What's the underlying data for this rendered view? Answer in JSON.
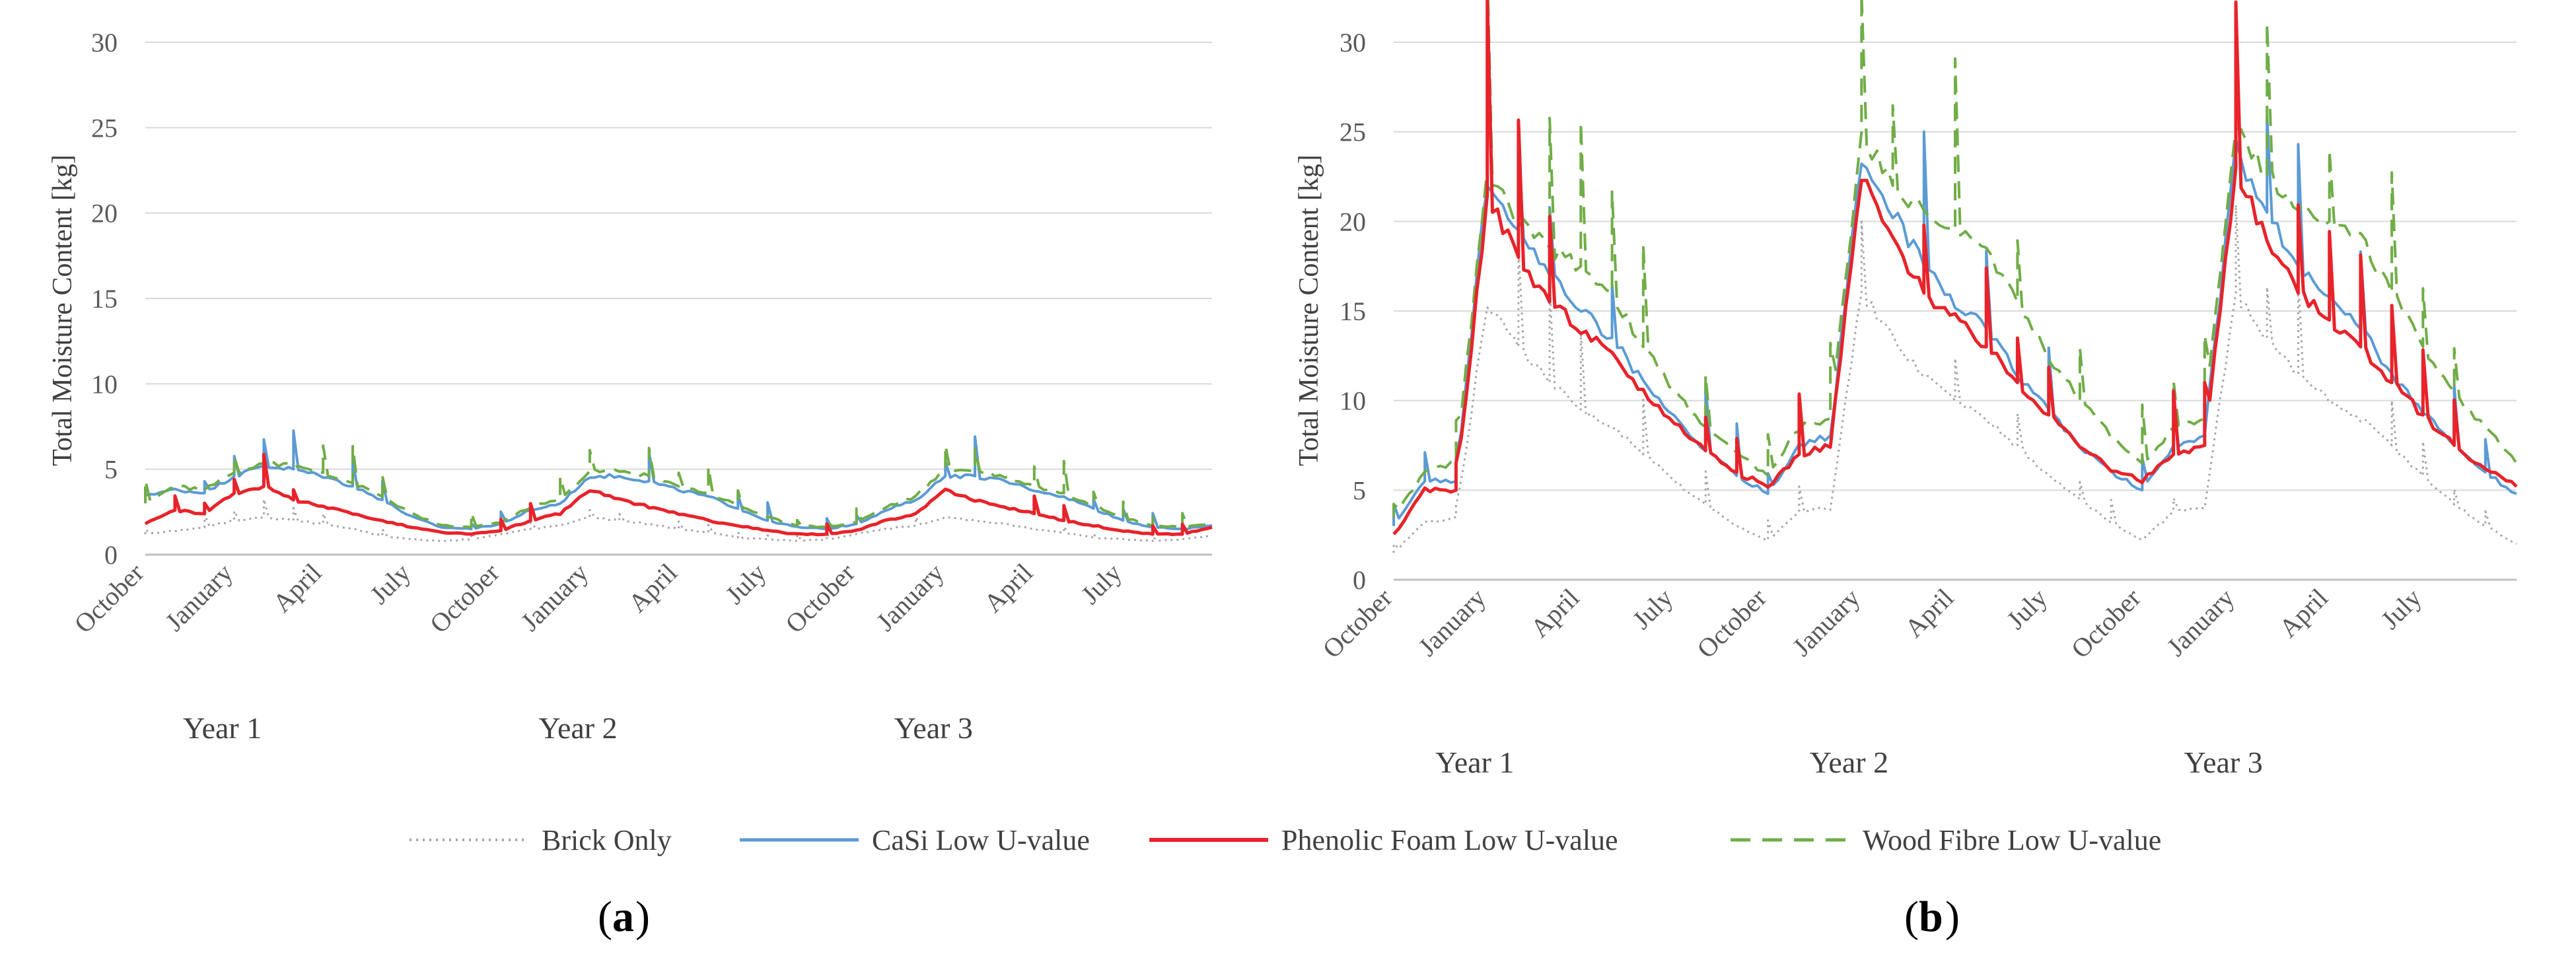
{
  "chart_data": [
    {
      "panel": "a",
      "type": "line",
      "ylabel": "Total Moisture Content [kg]",
      "ylim": [
        0,
        30
      ],
      "yticks": [
        0,
        5,
        10,
        15,
        20,
        25,
        30
      ],
      "grid": "horizontal",
      "x_tick_labels": [
        "October",
        "January",
        "April",
        "July",
        "October",
        "January",
        "April",
        "July",
        "October",
        "January",
        "April",
        "July"
      ],
      "year_labels": [
        "Year 1",
        "Year 2",
        "Year 3"
      ],
      "month_units": "months since start (0 = October, Year 1)",
      "x_range_months": [
        0,
        36
      ],
      "series": [
        {
          "name": "Brick Only",
          "color": "#a6a6a6",
          "dash": "dotted",
          "x": [
            0,
            1,
            2,
            3,
            4,
            5,
            6,
            7,
            8,
            9,
            10,
            11,
            12,
            13,
            14,
            15,
            16,
            17,
            18,
            19,
            20,
            21,
            22,
            23,
            24,
            25,
            26,
            27,
            28,
            29,
            30,
            31,
            32,
            33,
            34,
            35,
            36
          ],
          "values": [
            1.2,
            1.4,
            1.6,
            2.0,
            2.2,
            2.0,
            1.8,
            1.5,
            1.1,
            0.9,
            0.8,
            0.9,
            1.2,
            1.5,
            1.7,
            2.2,
            2.0,
            1.8,
            1.5,
            1.3,
            1.0,
            0.9,
            0.8,
            0.9,
            1.2,
            1.5,
            1.7,
            2.2,
            2.0,
            1.8,
            1.5,
            1.3,
            1.0,
            0.9,
            0.8,
            0.9,
            1.1
          ]
        },
        {
          "name": "CaSi Low U-value",
          "color": "#5b9bd5",
          "dash": "solid",
          "x": [
            0,
            1,
            2,
            3,
            4,
            5,
            6,
            7,
            8,
            9,
            10,
            11,
            12,
            13,
            14,
            15,
            16,
            17,
            18,
            19,
            20,
            21,
            22,
            23,
            24,
            25,
            26,
            27,
            28,
            29,
            30,
            31,
            32,
            33,
            34,
            35,
            36
          ],
          "values": [
            3.5,
            3.8,
            3.6,
            4.6,
            5.2,
            5.0,
            4.6,
            4.0,
            3.2,
            2.2,
            1.6,
            1.5,
            1.8,
            2.6,
            3.0,
            4.6,
            4.6,
            4.3,
            3.8,
            3.4,
            2.7,
            2.0,
            1.6,
            1.5,
            1.8,
            2.6,
            3.2,
            4.6,
            4.6,
            4.3,
            3.8,
            3.4,
            2.7,
            2.0,
            1.6,
            1.5,
            1.7
          ]
        },
        {
          "name": "Phenolic Foam Low U-value",
          "color": "#e8232a",
          "dash": "solid",
          "x": [
            0,
            1,
            2,
            3,
            4,
            5,
            6,
            7,
            8,
            9,
            10,
            11,
            12,
            13,
            14,
            15,
            16,
            17,
            18,
            19,
            20,
            21,
            22,
            23,
            24,
            25,
            26,
            27,
            28,
            29,
            30,
            31,
            32,
            33,
            34,
            35,
            36
          ],
          "values": [
            1.8,
            2.6,
            2.4,
            3.6,
            4.0,
            3.2,
            2.8,
            2.4,
            2.0,
            1.6,
            1.3,
            1.2,
            1.4,
            2.0,
            2.4,
            3.8,
            3.2,
            2.8,
            2.4,
            2.0,
            1.7,
            1.4,
            1.2,
            1.2,
            1.4,
            2.0,
            2.4,
            3.8,
            3.2,
            2.8,
            2.4,
            2.0,
            1.7,
            1.4,
            1.2,
            1.2,
            1.6
          ]
        },
        {
          "name": "Wood Fibre Low U-value",
          "color": "#70ad47",
          "dash": "dashed",
          "x": [
            0,
            1,
            2,
            3,
            4,
            5,
            6,
            7,
            8,
            9,
            10,
            11,
            12,
            13,
            14,
            15,
            16,
            17,
            18,
            19,
            20,
            21,
            22,
            23,
            24,
            25,
            26,
            27,
            28,
            29,
            30,
            31,
            32,
            33,
            34,
            35,
            36
          ],
          "values": [
            3.0,
            4.0,
            3.8,
            4.8,
            5.4,
            5.2,
            4.8,
            4.2,
            3.4,
            2.4,
            1.7,
            1.6,
            1.9,
            2.8,
            3.2,
            4.9,
            4.9,
            4.6,
            4.0,
            3.6,
            2.9,
            2.2,
            1.7,
            1.6,
            1.9,
            2.8,
            3.4,
            5.0,
            4.9,
            4.6,
            4.0,
            3.6,
            2.9,
            2.2,
            1.7,
            1.6,
            1.8
          ]
        }
      ]
    },
    {
      "panel": "b",
      "type": "line",
      "ylabel": "Total Moisture Content [kg]",
      "ylim": [
        0,
        30
      ],
      "yticks": [
        0,
        5,
        10,
        15,
        20,
        25,
        30
      ],
      "grid": "horizontal",
      "x_tick_labels": [
        "October",
        "January",
        "April",
        "July",
        "October",
        "January",
        "April",
        "July",
        "October",
        "January",
        "April",
        "July"
      ],
      "year_labels": [
        "Year 1",
        "Year 2",
        "Year 3"
      ],
      "month_units": "months since start (0 = October, Year 1)",
      "x_range_months": [
        0,
        36
      ],
      "series": [
        {
          "name": "Brick Only",
          "color": "#a6a6a6",
          "dash": "dotted",
          "x": [
            0,
            1,
            2,
            3,
            4,
            5,
            6,
            7,
            8,
            9,
            10,
            11,
            12,
            13,
            14,
            15,
            16,
            17,
            18,
            19,
            20,
            21,
            22,
            23,
            24,
            25,
            26,
            27,
            28,
            29,
            30,
            31,
            32,
            33,
            34,
            35,
            36
          ],
          "values": [
            1.5,
            3.2,
            3.5,
            15.5,
            13.0,
            11.0,
            9.5,
            8.5,
            7.0,
            5.5,
            4.2,
            3.0,
            2.2,
            3.8,
            4.0,
            16.0,
            13.5,
            11.5,
            10.0,
            9.0,
            7.5,
            5.8,
            4.5,
            3.2,
            2.2,
            3.8,
            4.0,
            16.0,
            13.5,
            11.5,
            10.0,
            9.0,
            7.5,
            5.8,
            4.2,
            3.0,
            2.0
          ]
        },
        {
          "name": "CaSi Low U-value",
          "color": "#5b9bd5",
          "dash": "solid",
          "x": [
            0,
            1,
            2,
            3,
            4,
            5,
            6,
            7,
            8,
            9,
            10,
            11,
            12,
            13,
            14,
            15,
            16,
            17,
            18,
            19,
            20,
            21,
            22,
            23,
            24,
            25,
            26,
            27,
            28,
            29,
            30,
            31,
            32,
            33,
            34,
            35,
            36
          ],
          "values": [
            3.0,
            5.5,
            5.5,
            22.5,
            19.5,
            17.0,
            15.0,
            13.5,
            11.0,
            9.0,
            7.2,
            5.8,
            4.8,
            7.5,
            8.0,
            23.5,
            20.5,
            17.5,
            15.5,
            14.0,
            11.5,
            9.5,
            7.5,
            6.0,
            5.0,
            7.5,
            8.0,
            24.0,
            20.5,
            17.5,
            15.5,
            14.0,
            11.5,
            9.5,
            7.5,
            6.0,
            4.8
          ]
        },
        {
          "name": "Phenolic Foam Low U-value",
          "color": "#e8232a",
          "dash": "solid",
          "x": [
            0,
            1,
            2,
            3,
            4,
            5,
            6,
            7,
            8,
            9,
            10,
            11,
            12,
            13,
            14,
            15,
            16,
            17,
            18,
            19,
            20,
            21,
            22,
            23,
            24,
            25,
            26,
            27,
            28,
            29,
            30,
            31,
            32,
            33,
            34,
            35,
            36
          ],
          "values": [
            2.5,
            5.0,
            5.0,
            21.5,
            18.0,
            15.5,
            14.0,
            12.5,
            10.5,
            8.8,
            7.2,
            6.0,
            5.2,
            7.0,
            7.5,
            22.5,
            19.0,
            16.0,
            14.5,
            13.0,
            11.0,
            9.2,
            7.5,
            6.2,
            5.5,
            7.0,
            7.5,
            23.0,
            19.0,
            16.0,
            14.5,
            13.0,
            11.0,
            9.2,
            7.5,
            6.2,
            5.2
          ]
        },
        {
          "name": "Wood Fibre Low U-value",
          "color": "#70ad47",
          "dash": "dashed",
          "x": [
            0,
            1,
            2,
            3,
            4,
            5,
            6,
            7,
            8,
            9,
            10,
            11,
            12,
            13,
            14,
            15,
            16,
            17,
            18,
            19,
            20,
            21,
            22,
            23,
            24,
            25,
            26,
            27,
            28,
            29,
            30,
            31,
            32,
            33,
            34,
            35,
            36
          ],
          "values": [
            3.5,
            6.0,
            6.5,
            23.0,
            20.0,
            18.5,
            17.5,
            16.0,
            13.0,
            10.5,
            8.5,
            7.0,
            5.8,
            8.5,
            9.0,
            25.0,
            22.0,
            20.5,
            19.5,
            18.5,
            15.5,
            12.5,
            10.0,
            8.0,
            6.5,
            8.5,
            9.0,
            25.5,
            22.5,
            21.0,
            20.0,
            19.0,
            16.0,
            13.0,
            10.5,
            8.5,
            6.5
          ]
        }
      ]
    }
  ],
  "legend": [
    {
      "label": "Brick Only",
      "color": "#a6a6a6",
      "dash": "dotted"
    },
    {
      "label": "CaSi Low U-value",
      "color": "#5b9bd5",
      "dash": "solid"
    },
    {
      "label": "Phenolic Foam Low U-value",
      "color": "#e8232a",
      "dash": "solid"
    },
    {
      "label": "Wood Fibre Low U-value",
      "color": "#70ad47",
      "dash": "dashed"
    }
  ],
  "captions": {
    "a": "a",
    "b": "b"
  }
}
